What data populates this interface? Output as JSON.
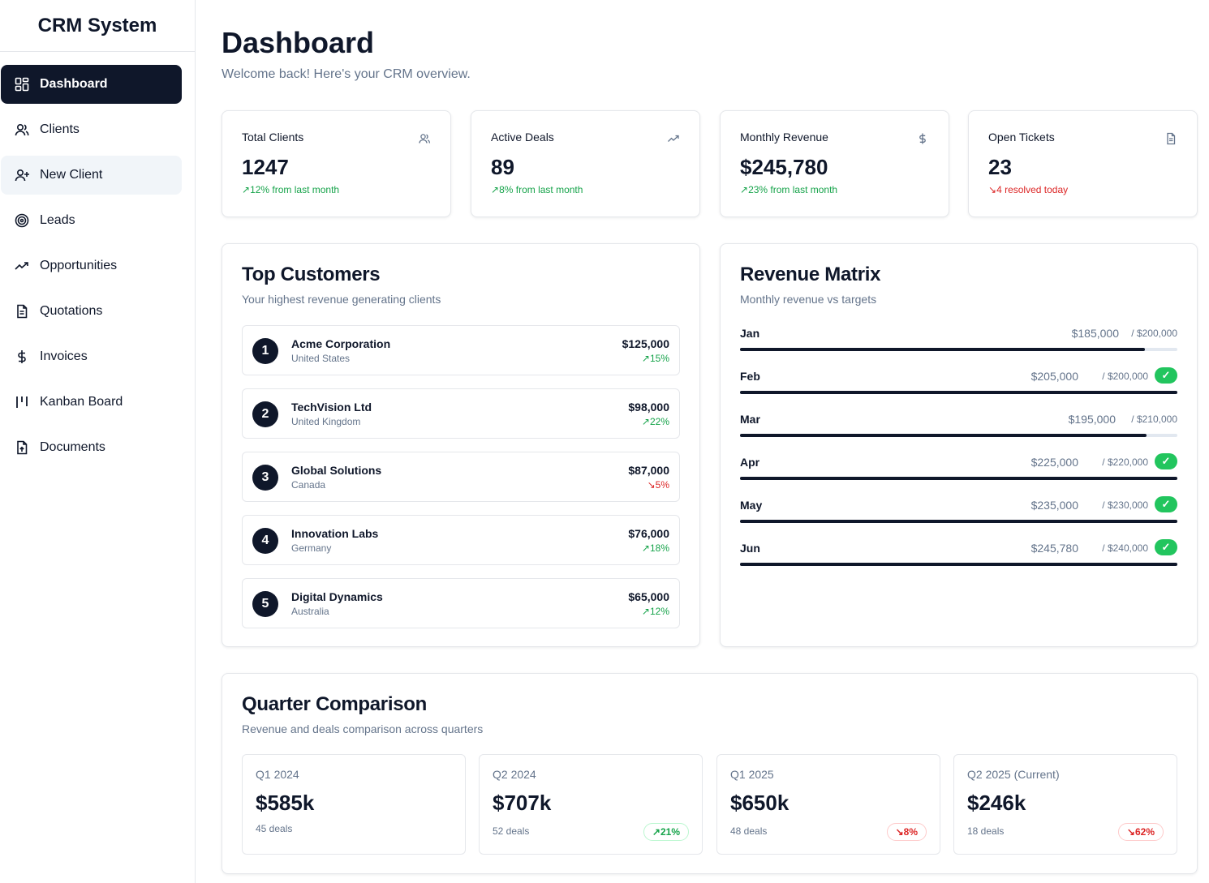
{
  "app": {
    "title": "CRM System"
  },
  "sidebar": {
    "items": [
      {
        "label": "Dashboard",
        "icon": "dashboard-icon",
        "state": "active"
      },
      {
        "label": "Clients",
        "icon": "users-icon",
        "state": ""
      },
      {
        "label": "New Client",
        "icon": "user-plus-icon",
        "state": "hover"
      },
      {
        "label": "Leads",
        "icon": "target-icon",
        "state": ""
      },
      {
        "label": "Opportunities",
        "icon": "trending-up-icon",
        "state": ""
      },
      {
        "label": "Quotations",
        "icon": "file-text-icon",
        "state": ""
      },
      {
        "label": "Invoices",
        "icon": "dollar-icon",
        "state": ""
      },
      {
        "label": "Kanban Board",
        "icon": "kanban-icon",
        "state": ""
      },
      {
        "label": "Documents",
        "icon": "file-upload-icon",
        "state": ""
      }
    ]
  },
  "header": {
    "title": "Dashboard",
    "subtitle": "Welcome back! Here's your CRM overview."
  },
  "stats": [
    {
      "label": "Total Clients",
      "icon": "users-icon",
      "value": "1247",
      "delta": "12% from last month",
      "trend": "up"
    },
    {
      "label": "Active Deals",
      "icon": "trending-up-icon",
      "value": "89",
      "delta": "8% from last month",
      "trend": "up"
    },
    {
      "label": "Monthly Revenue",
      "icon": "dollar-icon",
      "value": "$245,780",
      "delta": "23% from last month",
      "trend": "up"
    },
    {
      "label": "Open Tickets",
      "icon": "file-icon",
      "value": "23",
      "delta": "4 resolved today",
      "trend": "down"
    }
  ],
  "top_customers": {
    "title": "Top Customers",
    "subtitle": "Your highest revenue generating clients",
    "items": [
      {
        "rank": "1",
        "name": "Acme Corporation",
        "country": "United States",
        "amount": "$125,000",
        "pct": "15%",
        "trend": "up"
      },
      {
        "rank": "2",
        "name": "TechVision Ltd",
        "country": "United Kingdom",
        "amount": "$98,000",
        "pct": "22%",
        "trend": "up"
      },
      {
        "rank": "3",
        "name": "Global Solutions",
        "country": "Canada",
        "amount": "$87,000",
        "pct": "5%",
        "trend": "down"
      },
      {
        "rank": "4",
        "name": "Innovation Labs",
        "country": "Germany",
        "amount": "$76,000",
        "pct": "18%",
        "trend": "up"
      },
      {
        "rank": "5",
        "name": "Digital Dynamics",
        "country": "Australia",
        "amount": "$65,000",
        "pct": "12%",
        "trend": "up"
      }
    ]
  },
  "revenue_matrix": {
    "title": "Revenue Matrix",
    "subtitle": "Monthly revenue vs targets",
    "rows": [
      {
        "month": "Jan",
        "revenue": "$185,000",
        "target": "/ $200,000",
        "progress": 0.925,
        "met": false
      },
      {
        "month": "Feb",
        "revenue": "$205,000",
        "target": "/ $200,000",
        "progress": 1.0,
        "met": true
      },
      {
        "month": "Mar",
        "revenue": "$195,000",
        "target": "/ $210,000",
        "progress": 0.929,
        "met": false
      },
      {
        "month": "Apr",
        "revenue": "$225,000",
        "target": "/ $220,000",
        "progress": 1.0,
        "met": true
      },
      {
        "month": "May",
        "revenue": "$235,000",
        "target": "/ $230,000",
        "progress": 1.0,
        "met": true
      },
      {
        "month": "Jun",
        "revenue": "$245,780",
        "target": "/ $240,000",
        "progress": 1.0,
        "met": true
      }
    ]
  },
  "quarter_comparison": {
    "title": "Quarter Comparison",
    "subtitle": "Revenue and deals comparison across quarters",
    "items": [
      {
        "label": "Q1 2024",
        "value": "$585k",
        "deals": "45 deals",
        "change": "",
        "trend": ""
      },
      {
        "label": "Q2 2024",
        "value": "$707k",
        "deals": "52 deals",
        "change": "21%",
        "trend": "up"
      },
      {
        "label": "Q1 2025",
        "value": "$650k",
        "deals": "48 deals",
        "change": "8%",
        "trend": "down"
      },
      {
        "label": "Q2 2025 (Current)",
        "value": "$246k",
        "deals": "18 deals",
        "change": "62%",
        "trend": "down"
      }
    ]
  },
  "colors": {
    "primary": "#0f172a",
    "muted": "#64748b",
    "positive": "#16a34a",
    "negative": "#dc2626",
    "success_badge": "#22c55e"
  }
}
